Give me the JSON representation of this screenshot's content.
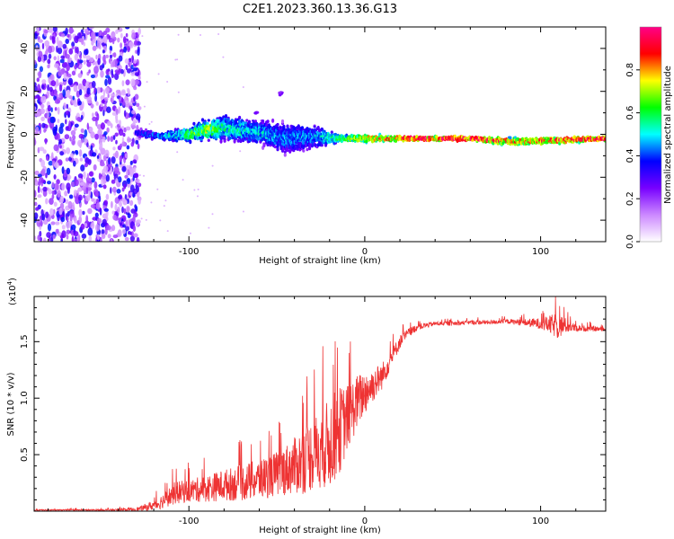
{
  "title": "C2E1.2023.360.13.36.G13",
  "chart_data": [
    {
      "type": "heatmap",
      "xlabel": "Height of straight line (km)",
      "ylabel": "Frequency (Hz)",
      "xlim": [
        -188,
        137
      ],
      "ylim": [
        -50,
        50
      ],
      "x_ticks": [
        -100,
        0,
        100
      ],
      "x_tick_labels": [
        "-100",
        "0",
        "100"
      ],
      "y_ticks": [
        -40,
        -20,
        0,
        20,
        40
      ],
      "y_tick_labels": [
        "-40",
        "-20",
        "0",
        "20",
        "40"
      ],
      "grid": false,
      "colorbar": {
        "label": "Normalized spectral amplitude",
        "range": [
          0,
          1
        ],
        "ticks": [
          0.0,
          0.2,
          0.4,
          0.6,
          0.8
        ],
        "tick_labels": [
          "0.0",
          "0.2",
          "0.4",
          "0.6",
          "0.8"
        ],
        "colors": [
          "#ffffff",
          "#cc88ff",
          "#7700ff",
          "#0000ff",
          "#00ffff",
          "#00ff00",
          "#ffff00",
          "#ff0000",
          "#ff0088"
        ]
      },
      "noise_region_x": [
        -188,
        -128
      ],
      "band": [
        {
          "x": -128,
          "f": 0.5,
          "width": 3,
          "amp": 0.35
        },
        {
          "x": -115,
          "f": -1.0,
          "width": 3,
          "amp": 0.45
        },
        {
          "x": -100,
          "f": 0.0,
          "width": 6,
          "amp": 0.6
        },
        {
          "x": -90,
          "f": 2.0,
          "width": 8,
          "amp": 0.7
        },
        {
          "x": -80,
          "f": 3.0,
          "width": 10,
          "amp": 0.55
        },
        {
          "x": -60,
          "f": 1.0,
          "width": 9,
          "amp": 0.5
        },
        {
          "x": -45,
          "f": -2.0,
          "width": 12,
          "amp": 0.45
        },
        {
          "x": -30,
          "f": -1.0,
          "width": 10,
          "amp": 0.45
        },
        {
          "x": -15,
          "f": -2.0,
          "width": 3,
          "amp": 0.6
        },
        {
          "x": 0,
          "f": -2.0,
          "width": 3,
          "amp": 0.75
        },
        {
          "x": 20,
          "f": -2.0,
          "width": 2,
          "amp": 0.9
        },
        {
          "x": 60,
          "f": -2.0,
          "width": 2,
          "amp": 0.95
        },
        {
          "x": 85,
          "f": -3.5,
          "width": 3,
          "amp": 0.8
        },
        {
          "x": 137,
          "f": -2.0,
          "width": 2,
          "amp": 0.95
        }
      ],
      "features": [
        {
          "x": -48,
          "f": 19,
          "amp": 0.2
        },
        {
          "x": -62,
          "f": 10,
          "amp": 0.2
        }
      ]
    },
    {
      "type": "line",
      "xlabel": "Height of straight line (km)",
      "ylabel": "SNR (10 * v/v)",
      "y_multiplier": "(x10",
      "y_multiplier_exp": "4",
      "y_multiplier_close": ")",
      "xlim": [
        -188,
        137
      ],
      "ylim": [
        0,
        1.9
      ],
      "x_ticks": [
        -100,
        0,
        100
      ],
      "x_tick_labels": [
        "-100",
        "0",
        "100"
      ],
      "y_ticks": [
        0.5,
        1.0,
        1.5
      ],
      "y_tick_labels": [
        "0.5",
        "1.0",
        "1.5"
      ],
      "grid": false,
      "series": [
        {
          "color": "#ee3333",
          "x": [
            -188,
            -160,
            -140,
            -128,
            -118,
            -112,
            -108,
            -100,
            -90,
            -80,
            -70,
            -60,
            -50,
            -40,
            -35,
            -30,
            -25,
            -20,
            -15,
            -10,
            -5,
            0,
            5,
            10,
            15,
            20,
            25,
            30,
            40,
            50,
            60,
            70,
            80,
            90,
            100,
            105,
            110,
            115,
            120,
            137
          ],
          "base": [
            0.01,
            0.01,
            0.01,
            0.02,
            0.06,
            0.12,
            0.16,
            0.18,
            0.2,
            0.23,
            0.25,
            0.28,
            0.33,
            0.4,
            0.45,
            0.5,
            0.55,
            0.6,
            0.7,
            0.82,
            0.95,
            1.05,
            1.12,
            1.2,
            1.35,
            1.5,
            1.58,
            1.63,
            1.66,
            1.66,
            1.67,
            1.67,
            1.68,
            1.67,
            1.66,
            1.65,
            1.64,
            1.64,
            1.62,
            1.61
          ],
          "noise": [
            0.005,
            0.005,
            0.01,
            0.02,
            0.05,
            0.08,
            0.1,
            0.1,
            0.12,
            0.14,
            0.16,
            0.18,
            0.2,
            0.25,
            0.3,
            0.32,
            0.35,
            0.4,
            0.4,
            0.3,
            0.25,
            0.2,
            0.15,
            0.12,
            0.08,
            0.06,
            0.04,
            0.03,
            0.02,
            0.02,
            0.02,
            0.02,
            0.02,
            0.03,
            0.05,
            0.08,
            0.12,
            0.06,
            0.03,
            0.02
          ]
        }
      ]
    }
  ]
}
